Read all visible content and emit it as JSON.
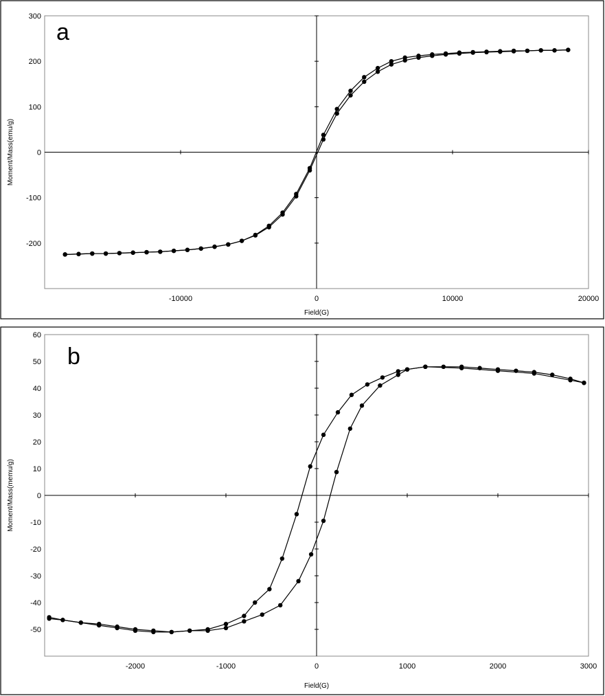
{
  "chart_data": [
    {
      "type": "line",
      "label": "a",
      "x_label": "Field(G)",
      "y_label": "Moment/Mass(emu/g)",
      "xlim": [
        -20000,
        20000
      ],
      "xticks": [
        -10000,
        0,
        10000,
        20000
      ],
      "ylim": [
        -300,
        300
      ],
      "yticks": [
        300,
        200,
        100,
        0,
        -100,
        -200
      ],
      "series": [
        {
          "color": "#000000",
          "x": [
            -18500,
            -17500,
            -16500,
            -15500,
            -14500,
            -13500,
            -12500,
            -11500,
            -10500,
            -9500,
            -8500,
            -7500,
            -6500,
            -5500,
            -4500,
            -3500,
            -2500,
            -1500,
            -500,
            500,
            1500,
            2500,
            3500,
            4500,
            5500,
            6500,
            7500,
            8500,
            9500,
            10500,
            11500,
            12500,
            13500,
            14500,
            15500,
            16500,
            17500,
            18500
          ],
          "values": [
            -225,
            -224,
            -223,
            -223,
            -222,
            -221,
            -220,
            -219,
            -217,
            -215,
            -212,
            -208,
            -203,
            -195,
            -183,
            -165,
            -137,
            -97,
            -40,
            28,
            85,
            125,
            155,
            177,
            193,
            202,
            208,
            212,
            215,
            217,
            219,
            220,
            221,
            222,
            223,
            224,
            224,
            225
          ]
        },
        {
          "color": "#000000",
          "x": [
            18500,
            17500,
            16500,
            15500,
            14500,
            13500,
            12500,
            11500,
            10500,
            9500,
            8500,
            7500,
            6500,
            5500,
            4500,
            3500,
            2500,
            1500,
            500,
            -500,
            -1500,
            -2500,
            -3500,
            -4500,
            -5500,
            -6500,
            -7500,
            -8500,
            -9500,
            -10500,
            -11500,
            -12500,
            -13500,
            -14500,
            -15500,
            -16500,
            -17500,
            -18500
          ],
          "values": [
            225,
            224,
            224,
            223,
            223,
            222,
            221,
            220,
            219,
            217,
            215,
            212,
            208,
            200,
            185,
            165,
            135,
            95,
            38,
            -35,
            -92,
            -133,
            -162,
            -182,
            -195,
            -203,
            -208,
            -212,
            -215,
            -217,
            -219,
            -220,
            -221,
            -222,
            -223,
            -223,
            -224,
            -225
          ]
        }
      ]
    },
    {
      "type": "line",
      "label": "b",
      "x_label": "Field(G)",
      "y_label": "Moment/Mass(memu/g)",
      "xlim": [
        -3000,
        3000
      ],
      "xticks": [
        -2000,
        -1000,
        0,
        1000,
        2000,
        3000
      ],
      "ylim": [
        -60,
        60
      ],
      "yticks": [
        60,
        50,
        40,
        30,
        20,
        10,
        0,
        -10,
        -20,
        -30,
        -40,
        -50
      ],
      "series": [
        {
          "color": "#000000",
          "x": [
            2950,
            2800,
            2600,
            2400,
            2200,
            2000,
            1800,
            1600,
            1400,
            1200,
            1000,
            900,
            727,
            560,
            386,
            235,
            76,
            -70,
            -220,
            -380,
            -520,
            -680,
            -800,
            -1000,
            -1200,
            -1400,
            -1600,
            -1800,
            -2000,
            -2200,
            -2400,
            -2600,
            -2800,
            -2950
          ],
          "values": [
            42,
            43.5,
            45,
            46,
            46.5,
            47,
            47.5,
            48,
            48,
            48,
            47,
            46.3,
            44,
            41.4,
            37.5,
            31,
            22.6,
            10.8,
            -7,
            -23.6,
            -35,
            -40,
            -45,
            -48,
            -50,
            -50.5,
            -51,
            -50.5,
            -50,
            -49,
            -48,
            -47.5,
            -46.5,
            -45.5
          ]
        },
        {
          "color": "#000000",
          "x": [
            -2950,
            -2800,
            -2600,
            -2400,
            -2200,
            -2000,
            -1800,
            -1600,
            -1400,
            -1200,
            -1000,
            -800,
            -600,
            -400,
            -200,
            -60,
            76,
            220,
            370,
            500,
            700,
            900,
            1000,
            1200,
            1600,
            2000,
            2400,
            2800,
            2950
          ],
          "values": [
            -46,
            -46.5,
            -47.5,
            -48.5,
            -49.5,
            -50.5,
            -51,
            -51,
            -50.5,
            -50.5,
            -49.5,
            -47,
            -44.5,
            -41,
            -32,
            -22,
            -9.5,
            8.7,
            24.9,
            33.5,
            41,
            45,
            47,
            48,
            47.5,
            46.5,
            45.5,
            43,
            42
          ]
        }
      ]
    }
  ]
}
